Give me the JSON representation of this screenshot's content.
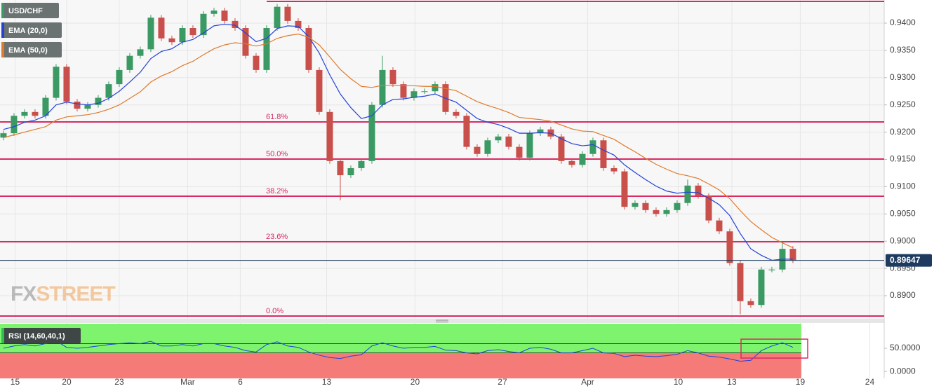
{
  "chart_data": {
    "type": "candlestick",
    "title": "USD/CHF",
    "x": [
      0,
      1,
      2,
      3,
      4,
      5,
      6,
      7,
      8,
      9,
      10,
      11,
      12,
      13,
      14,
      15,
      16,
      17,
      18,
      19,
      20,
      21,
      22,
      23,
      24,
      25,
      26,
      27,
      28,
      29,
      30,
      31,
      32,
      33,
      34,
      35,
      36,
      37,
      38,
      39,
      40,
      41,
      42,
      43,
      44,
      45,
      46,
      47,
      48,
      49,
      50,
      51,
      52,
      53,
      54,
      55,
      56,
      57,
      58,
      59,
      60,
      61,
      62,
      63,
      64,
      65,
      66,
      67,
      68,
      69,
      70,
      71,
      72,
      73,
      74,
      75
    ],
    "open": [
      0.919,
      0.9198,
      0.923,
      0.9237,
      0.923,
      0.9263,
      0.932,
      0.9256,
      0.9243,
      0.925,
      0.9263,
      0.9288,
      0.9314,
      0.934,
      0.9352,
      0.941,
      0.9372,
      0.9365,
      0.9391,
      0.9378,
      0.9417,
      0.9423,
      0.9404,
      0.9391,
      0.934,
      0.9314,
      0.9391,
      0.943,
      0.9404,
      0.9391,
      0.9314,
      0.9237,
      0.9147,
      0.9121,
      0.9134,
      0.9147,
      0.925,
      0.9314,
      0.9288,
      0.9263,
      0.9275,
      0.9275,
      0.9288,
      0.9237,
      0.923,
      0.9173,
      0.916,
      0.9185,
      0.9192,
      0.9173,
      0.9153,
      0.9198,
      0.9205,
      0.9192,
      0.9147,
      0.914,
      0.916,
      0.9185,
      0.9134,
      0.9128,
      0.9063,
      0.907,
      0.9057,
      0.905,
      0.9057,
      0.907,
      0.9102,
      0.9083,
      0.9038,
      0.9018,
      0.896,
      0.889,
      0.8883,
      0.8948,
      0.8948,
      0.8986
    ],
    "high": [
      0.9203,
      0.9235,
      0.9242,
      0.9242,
      0.9268,
      0.9325,
      0.9325,
      0.9261,
      0.9255,
      0.9268,
      0.9293,
      0.9319,
      0.9345,
      0.9357,
      0.9415,
      0.9415,
      0.9377,
      0.9396,
      0.9396,
      0.9422,
      0.9428,
      0.9428,
      0.9409,
      0.9396,
      0.9345,
      0.9396,
      0.9435,
      0.9435,
      0.9409,
      0.9396,
      0.9319,
      0.9242,
      0.9152,
      0.9139,
      0.9152,
      0.9255,
      0.934,
      0.9319,
      0.9293,
      0.928,
      0.928,
      0.9293,
      0.9293,
      0.9242,
      0.9235,
      0.9178,
      0.919,
      0.9197,
      0.9197,
      0.9178,
      0.9203,
      0.921,
      0.921,
      0.9197,
      0.9152,
      0.9165,
      0.919,
      0.919,
      0.9139,
      0.9133,
      0.9075,
      0.9075,
      0.9062,
      0.9062,
      0.9075,
      0.9113,
      0.9107,
      0.9088,
      0.9043,
      0.9023,
      0.8965,
      0.8895,
      0.8953,
      0.8953,
      0.8998,
      0.8991
    ],
    "low": [
      0.9185,
      0.9193,
      0.9225,
      0.9225,
      0.9225,
      0.9258,
      0.9251,
      0.9238,
      0.9238,
      0.9245,
      0.9258,
      0.9283,
      0.9309,
      0.9335,
      0.9347,
      0.9367,
      0.936,
      0.936,
      0.9373,
      0.9373,
      0.9412,
      0.9399,
      0.9386,
      0.9335,
      0.9309,
      0.9309,
      0.9386,
      0.9399,
      0.9386,
      0.9309,
      0.9232,
      0.9142,
      0.9075,
      0.9116,
      0.9129,
      0.9142,
      0.9245,
      0.9283,
      0.9258,
      0.9258,
      0.927,
      0.927,
      0.9232,
      0.9225,
      0.9168,
      0.9155,
      0.9155,
      0.918,
      0.9168,
      0.9148,
      0.9148,
      0.9193,
      0.9187,
      0.9142,
      0.9135,
      0.9135,
      0.9155,
      0.9129,
      0.9123,
      0.9058,
      0.9058,
      0.9052,
      0.9045,
      0.9045,
      0.9052,
      0.9065,
      0.9078,
      0.9033,
      0.9013,
      0.8955,
      0.8866,
      0.8878,
      0.8878,
      0.8943,
      0.8943,
      0.896
    ],
    "close": [
      0.9198,
      0.923,
      0.9237,
      0.923,
      0.9263,
      0.932,
      0.9256,
      0.9243,
      0.925,
      0.9263,
      0.9288,
      0.9314,
      0.934,
      0.9352,
      0.941,
      0.9372,
      0.9365,
      0.9391,
      0.9378,
      0.9417,
      0.9423,
      0.9404,
      0.9391,
      0.934,
      0.9314,
      0.9391,
      0.943,
      0.9404,
      0.9391,
      0.9314,
      0.9237,
      0.9147,
      0.9121,
      0.9134,
      0.9147,
      0.925,
      0.9314,
      0.9288,
      0.9263,
      0.9275,
      0.9275,
      0.9288,
      0.9237,
      0.923,
      0.9173,
      0.916,
      0.9185,
      0.9192,
      0.9173,
      0.9153,
      0.9198,
      0.9205,
      0.9192,
      0.9147,
      0.914,
      0.916,
      0.9185,
      0.9134,
      0.9128,
      0.9063,
      0.907,
      0.9057,
      0.905,
      0.9057,
      0.907,
      0.9102,
      0.9083,
      0.9038,
      0.9018,
      0.896,
      0.889,
      0.8883,
      0.8948,
      0.8948,
      0.8986,
      0.8965
    ],
    "up_color": "#3b9a63",
    "down_color": "#c9504a",
    "series": [
      {
        "name": "EMA (20,0)",
        "color": "#2342d8",
        "values": [
          0.9205,
          0.921,
          0.9218,
          0.9222,
          0.923,
          0.925,
          0.9255,
          0.9252,
          0.925,
          0.9253,
          0.9262,
          0.9275,
          0.9292,
          0.931,
          0.9335,
          0.9348,
          0.9353,
          0.9365,
          0.937,
          0.9382,
          0.9395,
          0.9398,
          0.9396,
          0.9382,
          0.9366,
          0.9372,
          0.939,
          0.9395,
          0.9394,
          0.9375,
          0.9345,
          0.9305,
          0.927,
          0.9245,
          0.9225,
          0.923,
          0.925,
          0.926,
          0.9261,
          0.9264,
          0.9266,
          0.927,
          0.9262,
          0.9255,
          0.924,
          0.9225,
          0.9218,
          0.9214,
          0.9207,
          0.9198,
          0.9198,
          0.9199,
          0.9198,
          0.9188,
          0.9179,
          0.9175,
          0.9177,
          0.9167,
          0.9158,
          0.914,
          0.9126,
          0.9113,
          0.9101,
          0.9092,
          0.9088,
          0.909,
          0.9089,
          0.9079,
          0.9067,
          0.9047,
          0.9014,
          0.8986,
          0.8974,
          0.8965,
          0.8967,
          0.8967
        ]
      },
      {
        "name": "EMA (50,0)",
        "color": "#e07a2c",
        "values": [
          0.919,
          0.9195,
          0.92,
          0.9205,
          0.921,
          0.9222,
          0.9228,
          0.923,
          0.9232,
          0.9236,
          0.9242,
          0.925,
          0.9262,
          0.9274,
          0.9292,
          0.9303,
          0.9311,
          0.9322,
          0.933,
          0.9342,
          0.9353,
          0.936,
          0.9364,
          0.9362,
          0.9358,
          0.9362,
          0.9372,
          0.9377,
          0.938,
          0.9374,
          0.936,
          0.9338,
          0.9315,
          0.9298,
          0.9284,
          0.9282,
          0.9286,
          0.9286,
          0.9285,
          0.9285,
          0.9284,
          0.9284,
          0.928,
          0.9276,
          0.9266,
          0.9256,
          0.9249,
          0.9243,
          0.9236,
          0.9227,
          0.9225,
          0.9223,
          0.922,
          0.9213,
          0.9206,
          0.9202,
          0.9201,
          0.9194,
          0.9187,
          0.9175,
          0.9164,
          0.9152,
          0.9141,
          0.9132,
          0.9124,
          0.912,
          0.9115,
          0.9105,
          0.9094,
          0.9078,
          0.9056,
          0.9036,
          0.9021,
          0.9007,
          0.8997,
          0.8988
        ]
      }
    ],
    "xlim": [
      -0.33,
      83.67
    ],
    "xticks": [
      {
        "value": 1.1,
        "label": "15"
      },
      {
        "value": 6.0,
        "label": "20"
      },
      {
        "value": 11.0,
        "label": "23"
      },
      {
        "value": 17.5,
        "label": "Mar"
      },
      {
        "value": 22.5,
        "label": "6"
      },
      {
        "value": 30.7,
        "label": "13"
      },
      {
        "value": 39.1,
        "label": "20"
      },
      {
        "value": 47.4,
        "label": "27"
      },
      {
        "value": 55.5,
        "label": "Apr"
      },
      {
        "value": 64.1,
        "label": "10"
      },
      {
        "value": 69.2,
        "label": "13"
      },
      {
        "value": 75.7,
        "label": "19"
      },
      {
        "value": 82.3,
        "label": "24"
      }
    ],
    "ylim": [
      0.88576,
      0.94424
    ],
    "yticks": [
      {
        "value": 0.89,
        "label": "0.8900"
      },
      {
        "value": 0.895,
        "label": "0.8950"
      },
      {
        "value": 0.9,
        "label": "0.9000"
      },
      {
        "value": 0.905,
        "label": "0.9050"
      },
      {
        "value": 0.91,
        "label": "0.9100"
      },
      {
        "value": 0.915,
        "label": "0.9150"
      },
      {
        "value": 0.92,
        "label": "0.9200"
      },
      {
        "value": 0.925,
        "label": "0.9250"
      },
      {
        "value": 0.93,
        "label": "0.9300"
      },
      {
        "value": 0.935,
        "label": "0.9350"
      },
      {
        "value": 0.94,
        "label": "0.9400"
      }
    ],
    "grid": true,
    "fib_color": "#d92a62",
    "fib_levels": [
      {
        "label": "61.8%",
        "value": 0.92188
      },
      {
        "label": "50.0%",
        "value": 0.91506
      },
      {
        "label": "38.2%",
        "value": 0.90825
      },
      {
        "label": "23.6%",
        "value": 0.8999
      },
      {
        "label": "0.0%",
        "value": 0.88627
      }
    ],
    "range_high": 0.94398,
    "last_price": 0.89647,
    "watermark": [
      "FX",
      "STREET"
    ],
    "indicator": {
      "name": "RSI (14,60,40,1)",
      "color": "#2342d8",
      "upper": 60,
      "lower": 40,
      "ylim": [
        -15,
        103
      ],
      "yticks": [
        {
          "value": 0,
          "label": "0.0000"
        },
        {
          "value": 50,
          "label": "50.0000"
        }
      ],
      "values": [
        50,
        55,
        58,
        55,
        60,
        66,
        52,
        50,
        52,
        55,
        58,
        60,
        62,
        60,
        65,
        55,
        55,
        58,
        55,
        60,
        60,
        55,
        52,
        45,
        42,
        58,
        64,
        55,
        52,
        42,
        35,
        30,
        28,
        33,
        36,
        55,
        62,
        55,
        50,
        52,
        52,
        54,
        46,
        45,
        40,
        38,
        45,
        47,
        43,
        40,
        50,
        52,
        48,
        40,
        40,
        45,
        50,
        40,
        39,
        32,
        35,
        33,
        32,
        34,
        37,
        45,
        40,
        33,
        31,
        27,
        22,
        24,
        45,
        55,
        62,
        52
      ]
    }
  }
}
